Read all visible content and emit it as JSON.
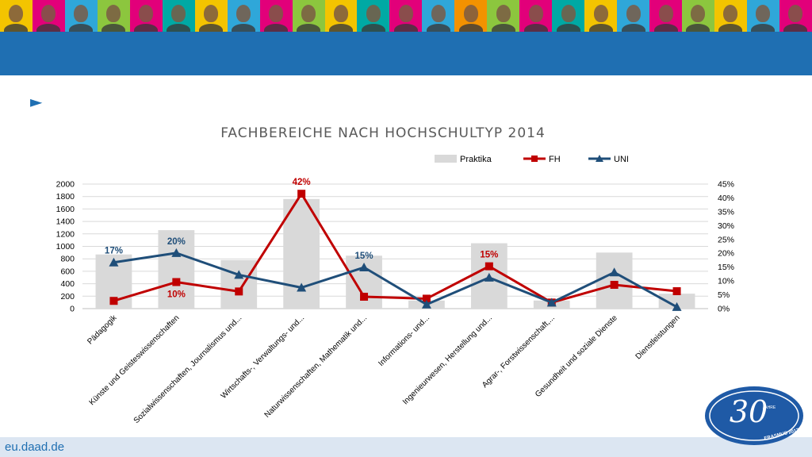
{
  "header": {
    "tile_colors": [
      "#f3c400",
      "#e2007a",
      "#2fa7d9",
      "#8cc63e",
      "#e2007a",
      "#00a9a4",
      "#f3c400",
      "#2fa7d9",
      "#e2007a",
      "#8cc63e",
      "#f3c400",
      "#00a9a4",
      "#e2007a",
      "#2fa7d9",
      "#f39200",
      "#8cc63e",
      "#e2007a",
      "#00a9a4",
      "#f3c400",
      "#2fa7d9",
      "#e2007a",
      "#8cc63e",
      "#f3c400",
      "#2fa7d9",
      "#e2007a"
    ],
    "band_color": "#1f6fb2",
    "pointer_icon": "play-triangle-icon"
  },
  "footer": {
    "link_text": "eu.daad.de"
  },
  "logo": {
    "number_text": "30",
    "small_text": "JAHRE",
    "caption": "ERASMUS 2017",
    "color": "#1f5aa6"
  },
  "chart_data": {
    "type": "bar",
    "title": "FACHBEREICHE NACH HOCHSCHULTYP 2014",
    "categories": [
      "Pädagogik",
      "Künste und Geisteswissenschaften",
      "Sozialwissenschaften, Journalismus und...",
      "Wirtschafts-, Verwaltungs- und...",
      "Naturwissenschaften, Mathematik und...",
      "Informations- und...",
      "Ingenieurwesen, Herstellung und...",
      "Agrar-, Forstwissenschaft,...",
      "Gesundheit und soziale Dienste",
      "Dienstleistungen"
    ],
    "legend_position": "top-right",
    "grid": true,
    "left_axis": {
      "min": 0,
      "max": 2000,
      "ticks": [
        "0",
        "200",
        "400",
        "600",
        "800",
        "1000",
        "1200",
        "1400",
        "1600",
        "1800",
        "2000"
      ]
    },
    "right_axis": {
      "min": 0,
      "max": 0.45,
      "ticks": [
        "0%",
        "5%",
        "10%",
        "15%",
        "20%",
        "25%",
        "30%",
        "35%",
        "40%",
        "45%"
      ]
    },
    "series": [
      {
        "name": "Praktika",
        "kind": "bar",
        "axis": "left",
        "color": "#d9d9d9",
        "values": [
          870,
          1260,
          780,
          1760,
          850,
          130,
          1050,
          130,
          900,
          240
        ]
      },
      {
        "name": "FH",
        "kind": "line",
        "axis": "right",
        "marker": "square",
        "color": "#c00000",
        "values": [
          0.028,
          0.096,
          0.062,
          0.415,
          0.043,
          0.036,
          0.153,
          0.022,
          0.086,
          0.063
        ]
      },
      {
        "name": "UNI",
        "kind": "line",
        "axis": "right",
        "marker": "triangle",
        "color": "#1f4e79",
        "values": [
          0.167,
          0.201,
          0.122,
          0.076,
          0.149,
          0.015,
          0.112,
          0.022,
          0.131,
          0.006
        ]
      }
    ],
    "annotations": [
      {
        "series": "UNI",
        "index": 0,
        "text": "17%",
        "placement": "above"
      },
      {
        "series": "UNI",
        "index": 1,
        "text": "20%",
        "placement": "above"
      },
      {
        "series": "FH",
        "index": 1,
        "text": "10%",
        "placement": "below"
      },
      {
        "series": "FH",
        "index": 3,
        "text": "42%",
        "placement": "above"
      },
      {
        "series": "UNI",
        "index": 4,
        "text": "15%",
        "placement": "above"
      },
      {
        "series": "FH",
        "index": 6,
        "text": "15%",
        "placement": "above"
      }
    ]
  }
}
